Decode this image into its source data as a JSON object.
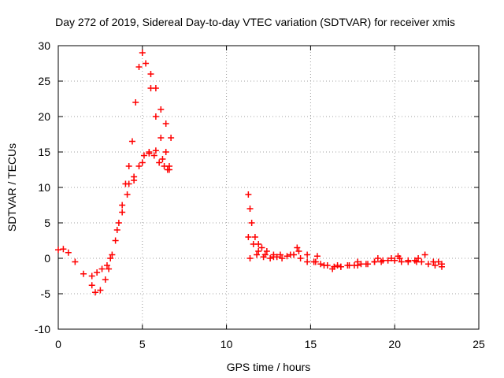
{
  "chart_data": {
    "type": "scatter",
    "title": "Day 272 of 2019, Sidereal Day-to-day VTEC variation (SDTVAR) for receiver xmis",
    "xlabel": "GPS time / hours",
    "ylabel": "SDTVAR / TECUs",
    "xlim": [
      0,
      25
    ],
    "ylim": [
      -10,
      30
    ],
    "xticks": [
      "0",
      "5",
      "10",
      "15",
      "20",
      "25"
    ],
    "yticks": [
      "-10",
      "-5",
      "0",
      "5",
      "10",
      "15",
      "20",
      "25",
      "30"
    ],
    "grid": true,
    "marker": "+",
    "color": "#ff0000",
    "series": [
      {
        "name": "SDTVAR",
        "x": [
          0.0,
          0.3,
          0.6,
          1.0,
          1.5,
          2.0,
          2.2,
          2.5,
          2.8,
          3.0,
          3.2,
          3.4,
          3.6,
          3.8,
          4.0,
          4.2,
          4.4,
          4.6,
          4.8,
          5.0,
          5.2,
          5.5,
          5.8,
          6.1,
          6.4,
          6.6,
          3.5,
          3.8,
          4.1,
          4.5,
          5.0,
          5.4,
          5.8,
          6.2,
          6.5,
          4.2,
          4.5,
          4.8,
          5.1,
          5.4,
          5.7,
          6.0,
          6.3,
          6.6,
          5.5,
          5.8,
          6.1,
          6.4,
          6.7,
          2.0,
          2.3,
          2.6,
          2.9,
          3.1,
          11.3,
          11.4,
          11.5,
          11.7,
          11.9,
          12.1,
          12.4,
          12.8,
          13.2,
          13.6,
          14.0,
          14.4,
          14.8,
          15.2,
          15.6,
          16.0,
          16.4,
          16.8,
          17.2,
          17.6,
          18.0,
          18.4,
          18.8,
          19.2,
          19.6,
          20.0,
          20.4,
          20.8,
          21.2,
          21.6,
          22.0,
          22.4,
          22.8,
          11.3,
          11.6,
          11.9,
          12.3,
          12.8,
          13.3,
          13.8,
          14.3,
          14.8,
          15.3,
          15.8,
          16.3,
          16.8,
          17.3,
          17.8,
          18.3,
          18.8,
          19.3,
          19.8,
          20.3,
          20.8,
          21.3,
          21.8,
          22.3,
          22.8,
          11.4,
          11.8,
          12.2,
          12.6,
          13.0,
          14.2,
          15.4,
          16.6,
          17.8,
          19.0,
          20.2,
          21.4,
          22.6
        ],
        "y": [
          1.2,
          1.3,
          0.8,
          -0.5,
          -2.2,
          -3.8,
          -4.8,
          -4.5,
          -3.0,
          -1.5,
          0.5,
          2.5,
          5.0,
          7.5,
          10.5,
          13.0,
          16.5,
          22.0,
          27.0,
          29.0,
          27.5,
          24.0,
          20.0,
          17.0,
          15.0,
          13.0,
          4.0,
          6.5,
          9.0,
          11.0,
          13.5,
          14.8,
          15.2,
          14.0,
          12.5,
          10.5,
          11.5,
          13.0,
          14.5,
          15.0,
          14.5,
          13.5,
          13.0,
          12.5,
          26.0,
          24.0,
          21.0,
          19.0,
          17.0,
          -2.5,
          -2.0,
          -1.5,
          -1.0,
          0.0,
          9.0,
          7.0,
          5.0,
          3.0,
          2.0,
          1.5,
          1.0,
          0.5,
          0.5,
          0.3,
          0.5,
          0.0,
          -0.5,
          -0.5,
          -0.8,
          -1.0,
          -1.2,
          -1.2,
          -1.0,
          -1.0,
          -0.8,
          -0.8,
          -0.5,
          -0.5,
          -0.3,
          -0.3,
          -0.5,
          -0.5,
          -0.3,
          -0.5,
          -0.8,
          -1.0,
          -1.2,
          3.0,
          2.0,
          1.0,
          0.5,
          0.2,
          0.0,
          0.5,
          1.0,
          0.5,
          -0.5,
          -1.0,
          -1.5,
          -1.2,
          -1.0,
          -1.0,
          -0.8,
          -0.5,
          -0.3,
          0.0,
          0.0,
          -0.3,
          -0.5,
          0.5,
          -0.5,
          -0.8,
          0.0,
          0.5,
          0.2,
          0.0,
          0.2,
          1.5,
          0.3,
          -1.0,
          -0.5,
          0.0,
          0.3,
          0.0,
          -0.5
        ]
      }
    ]
  }
}
